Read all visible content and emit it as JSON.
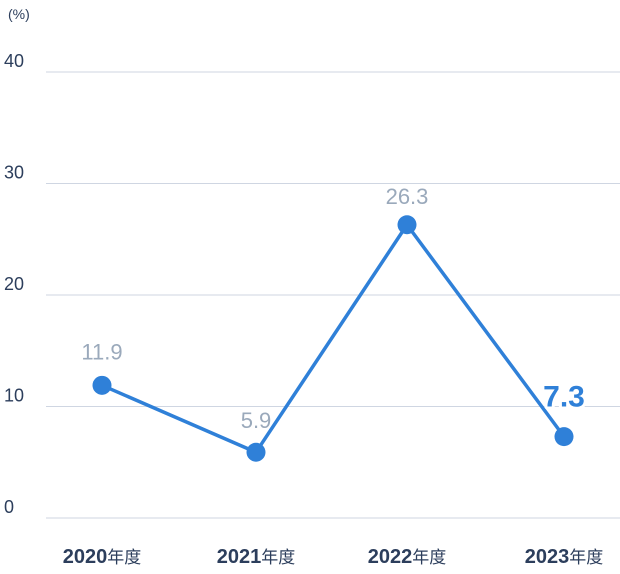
{
  "chart_data": {
    "type": "line",
    "unit_label": "(%)",
    "categories": [
      "2020年度",
      "2021年度",
      "2022年度",
      "2023年度"
    ],
    "category_years": [
      "2020",
      "2021",
      "2022",
      "2023"
    ],
    "category_suffix": "年度",
    "series": [
      {
        "values": [
          11.9,
          5.9,
          26.3,
          7.3
        ]
      }
    ],
    "data_labels": [
      "11.9",
      "5.9",
      "26.3",
      "7.3"
    ],
    "ylim": [
      0,
      40
    ],
    "yticks": [
      0,
      10,
      20,
      30,
      40
    ],
    "grid": true,
    "colors": {
      "line": "#2f80d8",
      "grid": "#cfd6e2",
      "axis_text": "#2c3e5c",
      "data_label": "#9aa9bb",
      "highlight_label": "#2f80d8"
    }
  }
}
